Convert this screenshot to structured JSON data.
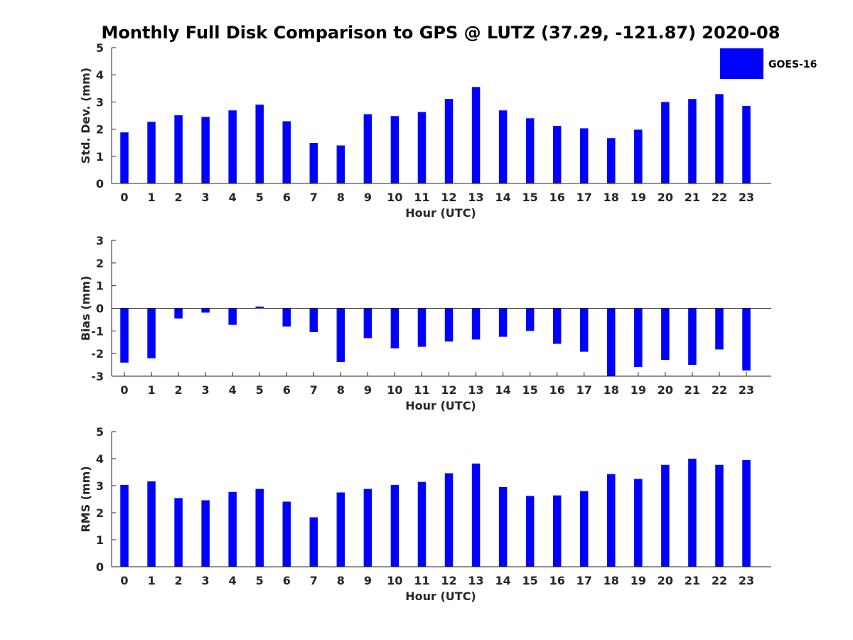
{
  "figure_title": "Monthly Full Disk Comparison to GPS @ LUTZ (37.29, -121.87) 2020-08",
  "legend": {
    "label": "GOES-16",
    "color": "#0000ff"
  },
  "chart_data": [
    {
      "type": "bar",
      "name": "std-dev",
      "title": "",
      "xlabel": "Hour (UTC)",
      "ylabel": "Std. Dev. (mm)",
      "ylim": [
        0,
        5
      ],
      "yticks": [
        0,
        1,
        2,
        3,
        4,
        5
      ],
      "categories": [
        "0",
        "1",
        "2",
        "3",
        "4",
        "5",
        "6",
        "7",
        "8",
        "9",
        "10",
        "11",
        "12",
        "13",
        "14",
        "15",
        "16",
        "17",
        "18",
        "19",
        "20",
        "21",
        "22",
        "23"
      ],
      "series": [
        {
          "name": "GOES-16",
          "color": "#0000ff",
          "values": [
            1.88,
            2.27,
            2.51,
            2.45,
            2.69,
            2.9,
            2.29,
            1.49,
            1.4,
            2.55,
            2.48,
            2.63,
            3.11,
            3.55,
            2.69,
            2.4,
            2.12,
            2.03,
            1.67,
            1.98,
            3.0,
            3.11,
            3.29,
            2.85
          ]
        }
      ]
    },
    {
      "type": "bar",
      "name": "bias",
      "title": "",
      "xlabel": "Hour (UTC)",
      "ylabel": "Bias (mm)",
      "ylim": [
        -3,
        3
      ],
      "yticks": [
        -3,
        -2,
        -1,
        0,
        1,
        2,
        3
      ],
      "categories": [
        "0",
        "1",
        "2",
        "3",
        "4",
        "5",
        "6",
        "7",
        "8",
        "9",
        "10",
        "11",
        "12",
        "13",
        "14",
        "15",
        "16",
        "17",
        "18",
        "19",
        "20",
        "21",
        "22",
        "23"
      ],
      "series": [
        {
          "name": "GOES-16",
          "color": "#0000ff",
          "values": [
            -2.4,
            -2.21,
            -0.45,
            -0.19,
            -0.73,
            0.07,
            -0.81,
            -1.05,
            -2.37,
            -1.32,
            -1.77,
            -1.7,
            -1.47,
            -1.38,
            -1.26,
            -1.0,
            -1.57,
            -1.92,
            -3.0,
            -2.59,
            -2.28,
            -2.5,
            -1.82,
            -2.75
          ]
        }
      ]
    },
    {
      "type": "bar",
      "name": "rms",
      "title": "",
      "xlabel": "Hour (UTC)",
      "ylabel": "RMS (mm)",
      "ylim": [
        0,
        5
      ],
      "yticks": [
        0,
        1,
        2,
        3,
        4,
        5
      ],
      "categories": [
        "0",
        "1",
        "2",
        "3",
        "4",
        "5",
        "6",
        "7",
        "8",
        "9",
        "10",
        "11",
        "12",
        "13",
        "14",
        "15",
        "16",
        "17",
        "18",
        "19",
        "20",
        "21",
        "22",
        "23"
      ],
      "series": [
        {
          "name": "GOES-16",
          "color": "#0000ff",
          "values": [
            3.03,
            3.16,
            2.54,
            2.46,
            2.77,
            2.88,
            2.41,
            1.83,
            2.75,
            2.88,
            3.03,
            3.14,
            3.46,
            3.82,
            2.95,
            2.62,
            2.64,
            2.8,
            3.43,
            3.25,
            3.77,
            4.0,
            3.77,
            3.95
          ]
        }
      ]
    }
  ]
}
